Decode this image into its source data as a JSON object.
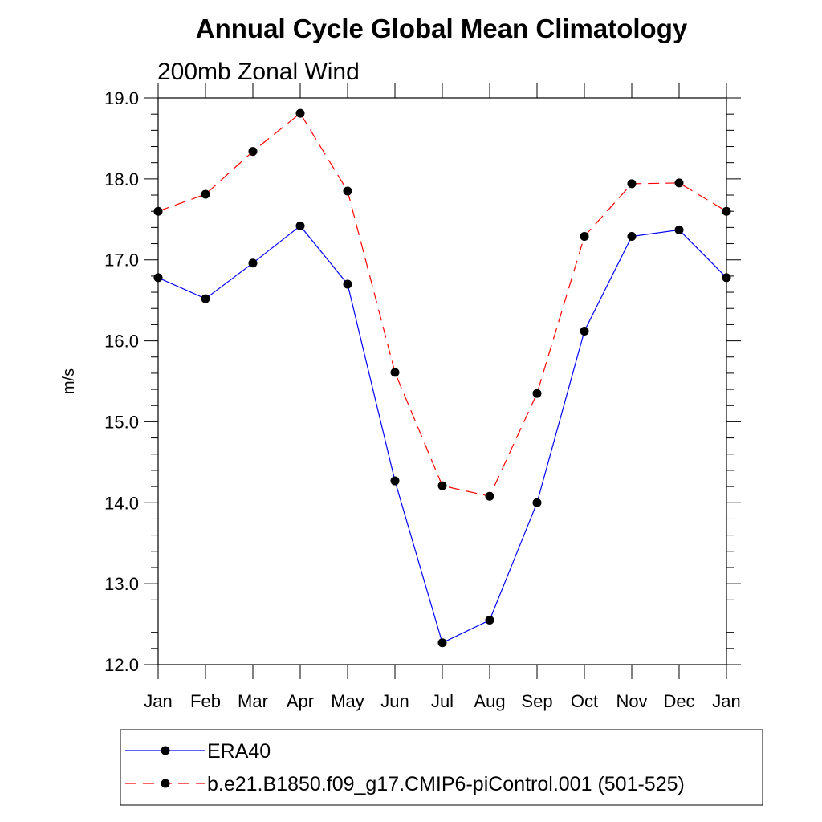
{
  "chart_data": {
    "type": "line",
    "title": "Annual Cycle Global Mean Climatology",
    "subtitle": "200mb Zonal Wind",
    "xlabel": "",
    "ylabel": "m/s",
    "ylim": [
      12.0,
      19.0
    ],
    "y_major_ticks": [
      "12.0",
      "13.0",
      "14.0",
      "15.0",
      "16.0",
      "17.0",
      "18.0",
      "19.0"
    ],
    "y_minor_step": 0.2,
    "grid": false,
    "legend_position": "bottom",
    "categories": [
      "Jan",
      "Feb",
      "Mar",
      "Apr",
      "May",
      "Jun",
      "Jul",
      "Aug",
      "Sep",
      "Oct",
      "Nov",
      "Dec",
      "Jan"
    ],
    "series": [
      {
        "name": "ERA40",
        "color": "#0000ff",
        "dash": "solid",
        "marker": "filled-circle",
        "values": [
          16.78,
          16.52,
          16.96,
          17.42,
          16.7,
          14.27,
          12.27,
          12.55,
          14.0,
          16.12,
          17.29,
          17.37,
          16.78
        ]
      },
      {
        "name": "b.e21.B1850.f09_g17.CMIP6-piControl.001 (501-525)",
        "color": "#ff0000",
        "dash": "dashed",
        "marker": "filled-circle",
        "values": [
          17.6,
          17.81,
          18.34,
          18.81,
          17.85,
          15.61,
          14.21,
          14.08,
          15.35,
          17.29,
          17.94,
          17.95,
          17.6
        ]
      }
    ]
  }
}
